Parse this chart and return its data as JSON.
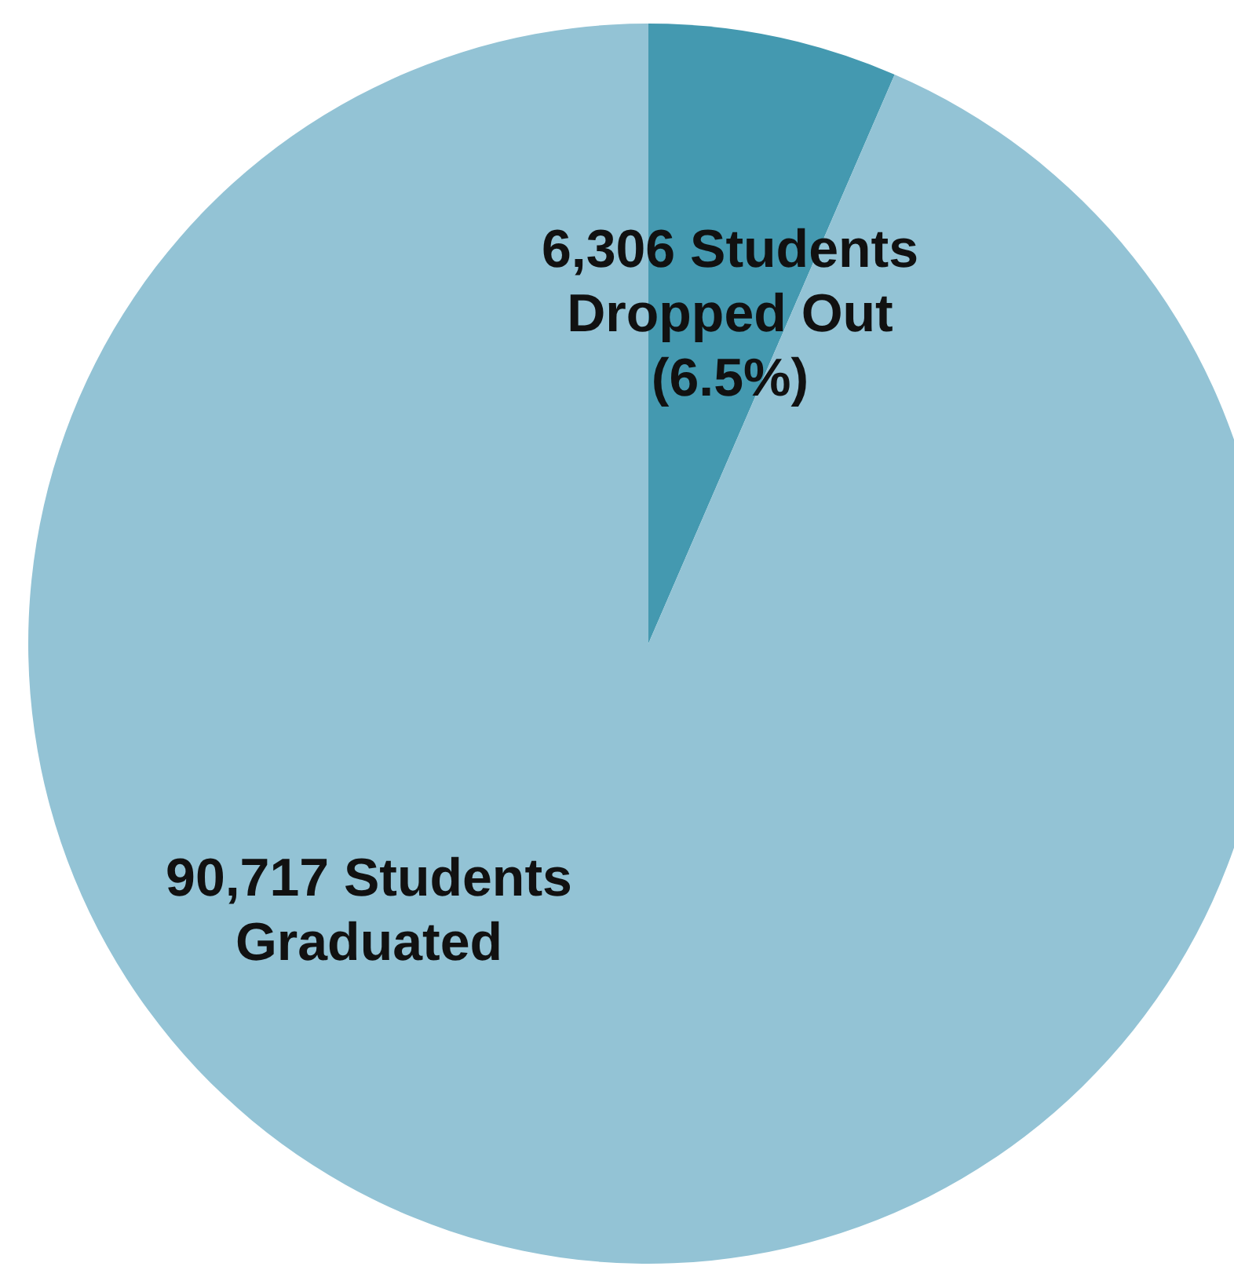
{
  "chart_data": {
    "type": "pie",
    "categories": [
      "6,306 Students Dropped Out (6.5%)",
      "90,717 Students Graduated"
    ],
    "values": [
      6306,
      90717
    ],
    "colors": [
      "#4499b0",
      "#93c3d5"
    ]
  }
}
